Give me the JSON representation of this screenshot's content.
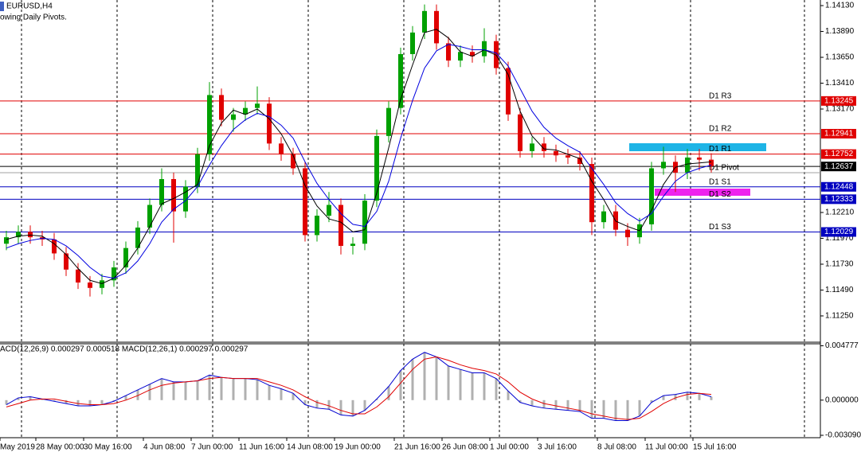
{
  "chart_data": {
    "type": "candlestick",
    "title": "EURUSD,H4",
    "subtitle": "owing Daily Pivots.",
    "up_color": "#00a000",
    "down_color": "#e00000",
    "categories": [
      "May 2019",
      null,
      null,
      "28 May 00:00",
      null,
      null,
      null,
      "30 May 16:00",
      null,
      null,
      null,
      null,
      "4 Jun 08:00",
      null,
      null,
      null,
      "7 Jun 00:00",
      null,
      null,
      null,
      "11 Jun 16:00",
      null,
      null,
      null,
      "14 Jun 08:00",
      null,
      null,
      null,
      "19 Jun 00:00",
      null,
      null,
      null,
      null,
      "21 Jun 16:00",
      null,
      null,
      null,
      "26 Jun 08:00",
      null,
      null,
      null,
      "1 Jul 00:00",
      null,
      null,
      null,
      "3 Jul 16:00",
      null,
      null,
      null,
      null,
      "8 Jul 08:00",
      null,
      null,
      null,
      "11 Jul 00:00",
      null,
      null,
      null,
      "15 Jul 16:00",
      null
    ],
    "candles": [
      [
        1.1192,
        1.1204,
        1.1186,
        1.1198
      ],
      [
        1.1198,
        1.1209,
        1.1192,
        1.1203
      ],
      [
        1.1203,
        1.1209,
        1.1192,
        1.1198
      ],
      [
        1.1198,
        1.1204,
        1.119,
        1.1196
      ],
      [
        1.1196,
        1.1202,
        1.1177,
        1.1183
      ],
      [
        1.1183,
        1.1189,
        1.1162,
        1.1168
      ],
      [
        1.1168,
        1.1174,
        1.115,
        1.1156
      ],
      [
        1.1156,
        1.1162,
        1.1143,
        1.1151
      ],
      [
        1.1151,
        1.1164,
        1.1145,
        1.1158
      ],
      [
        1.1158,
        1.1176,
        1.1152,
        1.117
      ],
      [
        1.117,
        1.1194,
        1.1164,
        1.1188
      ],
      [
        1.1188,
        1.1213,
        1.1182,
        1.1207
      ],
      [
        1.1207,
        1.1234,
        1.1201,
        1.1228
      ],
      [
        1.1228,
        1.1262,
        1.1222,
        1.1252
      ],
      [
        1.1252,
        1.1258,
        1.1193,
        1.1222
      ],
      [
        1.1222,
        1.1251,
        1.1216,
        1.1245
      ],
      [
        1.1245,
        1.1281,
        1.1239,
        1.1275
      ],
      [
        1.1275,
        1.1342,
        1.1269,
        1.133
      ],
      [
        1.133,
        1.1336,
        1.1301,
        1.1307
      ],
      [
        1.1307,
        1.1318,
        1.1296,
        1.1312
      ],
      [
        1.1312,
        1.1324,
        1.1306,
        1.1318
      ],
      [
        1.1318,
        1.1338,
        1.1312,
        1.1322
      ],
      [
        1.1322,
        1.1328,
        1.1279,
        1.1285
      ],
      [
        1.1285,
        1.1291,
        1.1269,
        1.1275
      ],
      [
        1.1275,
        1.1281,
        1.1256,
        1.1262
      ],
      [
        1.1262,
        1.1268,
        1.1194,
        1.12
      ],
      [
        1.12,
        1.1224,
        1.1194,
        1.1218
      ],
      [
        1.1218,
        1.124,
        1.1212,
        1.1228
      ],
      [
        1.1228,
        1.1234,
        1.1182,
        1.119
      ],
      [
        1.119,
        1.1198,
        1.1182,
        1.1192
      ],
      [
        1.1192,
        1.1238,
        1.1186,
        1.1232
      ],
      [
        1.1232,
        1.1298,
        1.1226,
        1.1292
      ],
      [
        1.1292,
        1.1324,
        1.1286,
        1.1318
      ],
      [
        1.1318,
        1.1374,
        1.1312,
        1.1368
      ],
      [
        1.1368,
        1.1394,
        1.1362,
        1.1388
      ],
      [
        1.1388,
        1.1414,
        1.1382,
        1.1408
      ],
      [
        1.1408,
        1.1414,
        1.1372,
        1.1378
      ],
      [
        1.1378,
        1.1384,
        1.1356,
        1.1362
      ],
      [
        1.1362,
        1.1376,
        1.1356,
        1.137
      ],
      [
        1.137,
        1.1376,
        1.136,
        1.1366
      ],
      [
        1.1366,
        1.1392,
        1.136,
        1.138
      ],
      [
        1.138,
        1.1386,
        1.1349,
        1.1355
      ],
      [
        1.1355,
        1.1361,
        1.1306,
        1.1312
      ],
      [
        1.1312,
        1.1318,
        1.1272,
        1.1278
      ],
      [
        1.1278,
        1.1291,
        1.1272,
        1.1285
      ],
      [
        1.1285,
        1.1291,
        1.1272,
        1.1278
      ],
      [
        1.1278,
        1.1284,
        1.1268,
        1.1274
      ],
      [
        1.1274,
        1.128,
        1.1266,
        1.1272
      ],
      [
        1.1272,
        1.1278,
        1.126,
        1.1266
      ],
      [
        1.1266,
        1.1272,
        1.12,
        1.1212
      ],
      [
        1.1212,
        1.1228,
        1.1206,
        1.1222
      ],
      [
        1.1222,
        1.1228,
        1.1199,
        1.1205
      ],
      [
        1.1205,
        1.1211,
        1.119,
        1.1198
      ],
      [
        1.1198,
        1.1216,
        1.1192,
        1.121
      ],
      [
        1.121,
        1.1268,
        1.1204,
        1.1262
      ],
      [
        1.1262,
        1.1282,
        1.1256,
        1.1268
      ],
      [
        1.1268,
        1.1274,
        1.124,
        1.1258
      ],
      [
        1.1258,
        1.128,
        1.1252,
        1.1272
      ],
      [
        1.1272,
        1.128,
        1.126,
        1.127
      ],
      [
        1.127,
        1.1276,
        1.1258,
        1.1264
      ]
    ],
    "series": [
      {
        "color": "#000000",
        "values": [
          1.1196,
          1.1199,
          1.12,
          1.1199,
          1.1192,
          1.1182,
          1.1169,
          1.1158,
          1.1155,
          1.116,
          1.1172,
          1.1188,
          1.1208,
          1.1229,
          1.1234,
          1.124,
          1.1247,
          1.1283,
          1.1304,
          1.1316,
          1.1312,
          1.1317,
          1.1308,
          1.1294,
          1.1274,
          1.1246,
          1.1227,
          1.1215,
          1.1212,
          1.1203,
          1.1205,
          1.1239,
          1.1281,
          1.1326,
          1.1358,
          1.1388,
          1.1391,
          1.1383,
          1.137,
          1.1366,
          1.1372,
          1.1367,
          1.1349,
          1.1315,
          1.1292,
          1.128,
          1.1279,
          1.1275,
          1.1271,
          1.125,
          1.1233,
          1.1213,
          1.1208,
          1.1204,
          1.1223,
          1.1247,
          1.1263,
          1.1266,
          1.1267,
          1.1268
        ]
      },
      {
        "color": "#0000e0",
        "values": [
          1.1188,
          1.1192,
          1.1195,
          1.1197,
          1.1196,
          1.119,
          1.1181,
          1.117,
          1.1162,
          1.116,
          1.1165,
          1.1176,
          1.1192,
          1.1212,
          1.1224,
          1.1232,
          1.1245,
          1.1265,
          1.1283,
          1.1298,
          1.1307,
          1.1313,
          1.131,
          1.1302,
          1.129,
          1.1268,
          1.1248,
          1.1233,
          1.122,
          1.121,
          1.1208,
          1.1222,
          1.125,
          1.129,
          1.1325,
          1.1355,
          1.1371,
          1.1377,
          1.1375,
          1.1372,
          1.1372,
          1.1369,
          1.1357,
          1.1336,
          1.1315,
          1.13,
          1.129,
          1.1283,
          1.1277,
          1.1262,
          1.1247,
          1.123,
          1.122,
          1.1213,
          1.122,
          1.1236,
          1.125,
          1.1258,
          1.1262,
          1.1265
        ]
      }
    ],
    "levels": [
      {
        "name": "D1 R3",
        "value": 1.13245,
        "color": "#e00000",
        "show_label": true
      },
      {
        "name": "D1 R2",
        "value": 1.12941,
        "color": "#e00000",
        "show_label": true
      },
      {
        "name": "D1 R1",
        "value": 1.12752,
        "color": "#e00000",
        "show_label": true
      },
      {
        "value": 1.12637,
        "color": "#000000",
        "show_label": true
      },
      {
        "name": "D1 Pivot",
        "value": 1.12579,
        "color": "#a0a0a0",
        "show_label": false
      },
      {
        "name": "D1 S1",
        "value": 1.12448,
        "color": "#0000c0",
        "show_label": true
      },
      {
        "name": "D1 S2",
        "value": 1.12333,
        "color": "#0000c0",
        "show_label": true
      },
      {
        "name": "D1 S3",
        "value": 1.12029,
        "color": "#0000c0",
        "show_label": true
      }
    ],
    "ylim": [
      1.11006,
      1.14182
    ],
    "yticks": [
      {
        "value": 1.1413,
        "label": "1.14130"
      },
      {
        "value": 1.1389,
        "label": "1.13890"
      },
      {
        "value": 1.1365,
        "label": "1.13650"
      },
      {
        "value": 1.1341,
        "label": "1.13410"
      },
      {
        "value": 1.1317,
        "label": "1.13170"
      },
      {
        "value": 1.1221,
        "label": "1.12210"
      },
      {
        "value": 1.1197,
        "label": "1.11970"
      },
      {
        "value": 1.1173,
        "label": "1.11730"
      },
      {
        "value": 1.1149,
        "label": "1.11490"
      },
      {
        "value": 1.1125,
        "label": "1.11250"
      }
    ],
    "macd": {
      "label": "ACD(12,26,9) 0.000297 0.000518 MACD(12,26,1) 0.000297 0.000297",
      "ylim": [
        -0.0033,
        0.00495
      ],
      "yticks": [
        0.004777,
        {
          "value": 0,
          "label": "0.000000"
        },
        {
          "value": -0.00309,
          "label": "-0.003090"
        }
      ],
      "histogram_color": "#b0b0b0",
      "series": [
        {
          "color": "#0000d0",
          "values": [
            -0.0004,
            0.0002,
            0.0003,
            0.0001,
            -0.0001,
            -0.0003,
            -0.0005,
            -0.0005,
            -0.0004,
            -0.0001,
            0.0004,
            0.0009,
            0.0014,
            0.0019,
            0.0016,
            0.0016,
            0.0017,
            0.0022,
            0.002,
            0.0019,
            0.0019,
            0.0018,
            0.0013,
            0.001,
            0.0006,
            -0.0004,
            -0.0007,
            -0.0008,
            -0.0013,
            -0.0014,
            -0.0009,
            0.0001,
            0.0012,
            0.0026,
            0.0036,
            0.0042,
            0.0038,
            0.003,
            0.0027,
            0.0024,
            0.0024,
            0.0019,
            0.0008,
            -0.0002,
            -0.0005,
            -0.0007,
            -0.0008,
            -0.0009,
            -0.001,
            -0.0016,
            -0.0016,
            -0.0018,
            -0.0018,
            -0.0014,
            -0.0002,
            0.0004,
            0.0005,
            0.0007,
            0.0006,
            0.0003
          ]
        },
        {
          "color": "#e00000",
          "values": [
            -0.0006,
            -0.0003,
            0,
            0.0001,
            0.0001,
            -0.0001,
            -0.0003,
            -0.0004,
            -0.0004,
            -0.0003,
            0,
            0.0004,
            0.0009,
            0.0013,
            0.0015,
            0.0016,
            0.0017,
            0.0019,
            0.002,
            0.0019,
            0.0019,
            0.0019,
            0.0016,
            0.0013,
            0.0009,
            0.0003,
            -0.0002,
            -0.0005,
            -0.0009,
            -0.0012,
            -0.0012,
            -0.0006,
            0.0003,
            0.0015,
            0.0027,
            0.0036,
            0.0038,
            0.0035,
            0.0031,
            0.0028,
            0.0026,
            0.0023,
            0.0016,
            0.0007,
            0.0001,
            -0.0003,
            -0.0005,
            -0.0007,
            -0.0009,
            -0.0012,
            -0.0014,
            -0.0016,
            -0.0017,
            -0.0016,
            -0.001,
            -0.0003,
            0.0002,
            0.0005,
            0.0006,
            0.0005
          ]
        }
      ]
    }
  }
}
